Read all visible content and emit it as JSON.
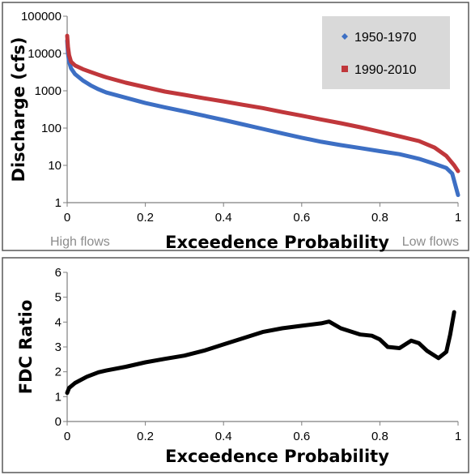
{
  "colors": {
    "series_1950": "#3d6fc4",
    "series_1990": "#c0373b",
    "ratio": "#000000",
    "legend_bg": "#d9d9d9"
  },
  "annotations": {
    "high_flows": "High flows",
    "low_flows": "Low flows"
  },
  "chart_data": [
    {
      "type": "line",
      "xlabel": "Exceedence Probability",
      "ylabel": "Discharge (cfs)",
      "xlim": [
        0,
        1
      ],
      "ylim": [
        1,
        100000
      ],
      "yscale": "log",
      "x_ticks": [
        "0",
        "0.2",
        "0.4",
        "0.6",
        "0.8",
        "1"
      ],
      "y_ticks": [
        "1",
        "10",
        "100",
        "1000",
        "10000",
        "100000"
      ],
      "grid": false,
      "legend_position": "top-right",
      "series": [
        {
          "name": "1950-1970",
          "color": "#3d6fc4",
          "marker": "diamond",
          "points": [
            [
              0,
              22000
            ],
            [
              0.002,
              10000
            ],
            [
              0.005,
              6000
            ],
            [
              0.01,
              4000
            ],
            [
              0.02,
              2800
            ],
            [
              0.04,
              1900
            ],
            [
              0.06,
              1400
            ],
            [
              0.08,
              1100
            ],
            [
              0.1,
              900
            ],
            [
              0.15,
              650
            ],
            [
              0.2,
              470
            ],
            [
              0.25,
              360
            ],
            [
              0.3,
              280
            ],
            [
              0.35,
              215
            ],
            [
              0.4,
              165
            ],
            [
              0.45,
              125
            ],
            [
              0.5,
              95
            ],
            [
              0.55,
              72
            ],
            [
              0.6,
              55
            ],
            [
              0.65,
              43
            ],
            [
              0.7,
              35
            ],
            [
              0.75,
              29
            ],
            [
              0.8,
              24
            ],
            [
              0.85,
              20
            ],
            [
              0.9,
              15
            ],
            [
              0.94,
              11
            ],
            [
              0.97,
              8.5
            ],
            [
              0.985,
              6
            ],
            [
              0.993,
              3
            ],
            [
              1,
              1.6
            ]
          ]
        },
        {
          "name": "1990-2010",
          "color": "#c0373b",
          "marker": "square",
          "points": [
            [
              0,
              30000
            ],
            [
              0.002,
              15000
            ],
            [
              0.005,
              9000
            ],
            [
              0.01,
              6000
            ],
            [
              0.02,
              4800
            ],
            [
              0.04,
              3800
            ],
            [
              0.06,
              3200
            ],
            [
              0.08,
              2700
            ],
            [
              0.1,
              2300
            ],
            [
              0.15,
              1650
            ],
            [
              0.2,
              1250
            ],
            [
              0.25,
              950
            ],
            [
              0.3,
              780
            ],
            [
              0.35,
              630
            ],
            [
              0.4,
              520
            ],
            [
              0.45,
              420
            ],
            [
              0.5,
              345
            ],
            [
              0.55,
              270
            ],
            [
              0.6,
              215
            ],
            [
              0.65,
              170
            ],
            [
              0.7,
              135
            ],
            [
              0.75,
              105
            ],
            [
              0.8,
              80
            ],
            [
              0.85,
              60
            ],
            [
              0.9,
              45
            ],
            [
              0.94,
              30
            ],
            [
              0.97,
              18
            ],
            [
              0.99,
              10
            ],
            [
              1,
              7
            ]
          ]
        }
      ]
    },
    {
      "type": "line",
      "xlabel": "Exceedence Probability",
      "ylabel": "FDC Ratio",
      "xlim": [
        0,
        1
      ],
      "ylim": [
        0,
        6
      ],
      "x_ticks": [
        "0",
        "0.2",
        "0.4",
        "0.6",
        "0.8",
        "1"
      ],
      "y_ticks": [
        "0",
        "1",
        "2",
        "3",
        "4",
        "5",
        "6"
      ],
      "grid": false,
      "series": [
        {
          "color": "#000000",
          "points": [
            [
              0,
              1.15
            ],
            [
              0.005,
              1.35
            ],
            [
              0.02,
              1.55
            ],
            [
              0.05,
              1.8
            ],
            [
              0.08,
              1.98
            ],
            [
              0.1,
              2.05
            ],
            [
              0.15,
              2.2
            ],
            [
              0.2,
              2.38
            ],
            [
              0.25,
              2.52
            ],
            [
              0.3,
              2.65
            ],
            [
              0.35,
              2.85
            ],
            [
              0.4,
              3.1
            ],
            [
              0.45,
              3.35
            ],
            [
              0.5,
              3.6
            ],
            [
              0.55,
              3.75
            ],
            [
              0.6,
              3.85
            ],
            [
              0.65,
              3.95
            ],
            [
              0.67,
              4.02
            ],
            [
              0.7,
              3.75
            ],
            [
              0.75,
              3.5
            ],
            [
              0.78,
              3.45
            ],
            [
              0.8,
              3.3
            ],
            [
              0.82,
              3.0
            ],
            [
              0.85,
              2.95
            ],
            [
              0.88,
              3.25
            ],
            [
              0.9,
              3.15
            ],
            [
              0.92,
              2.85
            ],
            [
              0.95,
              2.55
            ],
            [
              0.97,
              2.8
            ],
            [
              0.98,
              3.5
            ],
            [
              0.99,
              4.4
            ]
          ]
        }
      ]
    }
  ]
}
